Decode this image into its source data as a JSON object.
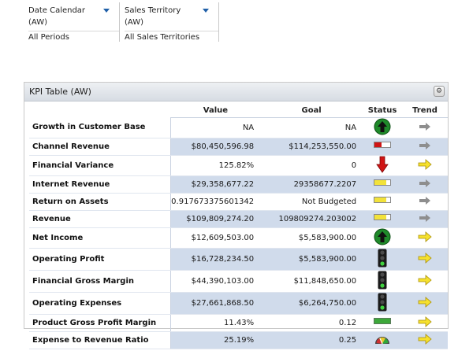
{
  "filters": [
    {
      "label": "Date Calendar (AW)",
      "value": "All Periods"
    },
    {
      "label": "Sales Territory (AW)",
      "value": "All Sales Territories"
    }
  ],
  "panel": {
    "title": "KPI Table (AW)",
    "columns": {
      "value": "Value",
      "goal": "Goal",
      "status": "Status",
      "trend": "Trend"
    },
    "rows": [
      {
        "name": "Growth in Customer Base",
        "value": "NA",
        "goal": "NA",
        "status": "up-arrow-green",
        "trend": "right-arrow-gray"
      },
      {
        "name": "Channel Revenue",
        "value": "$80,450,596.98",
        "goal": "$114,253,550.00",
        "status": "bar-red",
        "trend": "right-arrow-gray"
      },
      {
        "name": "Financial Variance",
        "value": "125.82%",
        "goal": "0",
        "status": "down-arrow-red",
        "trend": "right-arrow-yellow"
      },
      {
        "name": "Internet Revenue",
        "value": "$29,358,677.22",
        "goal": "29358677.2207",
        "status": "bar-yellow",
        "trend": "right-arrow-gray"
      },
      {
        "name": "Return on Assets",
        "value": "0.917673375601342",
        "goal": "Not Budgeted",
        "status": "bar-yellow",
        "trend": "right-arrow-gray"
      },
      {
        "name": "Revenue",
        "value": "$109,809,274.20",
        "goal": "109809274.203002",
        "status": "bar-yellow",
        "trend": "right-arrow-gray"
      },
      {
        "name": "Net Income",
        "value": "$12,609,503.00",
        "goal": "$5,583,900.00",
        "status": "up-arrow-green",
        "trend": "right-arrow-yellow"
      },
      {
        "name": "Operating Profit",
        "value": "$16,728,234.50",
        "goal": "$5,583,900.00",
        "status": "traffic-light",
        "trend": "right-arrow-yellow"
      },
      {
        "name": "Financial Gross Margin",
        "value": "$44,390,103.00",
        "goal": "$11,848,650.00",
        "status": "traffic-light",
        "trend": "right-arrow-yellow"
      },
      {
        "name": "Operating Expenses",
        "value": "$27,661,868.50",
        "goal": "$6,264,750.00",
        "status": "traffic-light",
        "trend": "right-arrow-yellow"
      },
      {
        "name": "Product Gross Profit Margin",
        "value": "11.43%",
        "goal": "0.12",
        "status": "bar-green",
        "trend": "right-arrow-yellow"
      },
      {
        "name": "Expense to Revenue Ratio",
        "value": "25.19%",
        "goal": "0.25",
        "status": "gauge",
        "trend": "right-arrow-yellow"
      }
    ]
  },
  "colors": {
    "band": "#d0dbeb",
    "accent": "#1f5fa8",
    "green": "#1f8a2a",
    "red": "#d01414",
    "yellow": "#f2e23a"
  }
}
